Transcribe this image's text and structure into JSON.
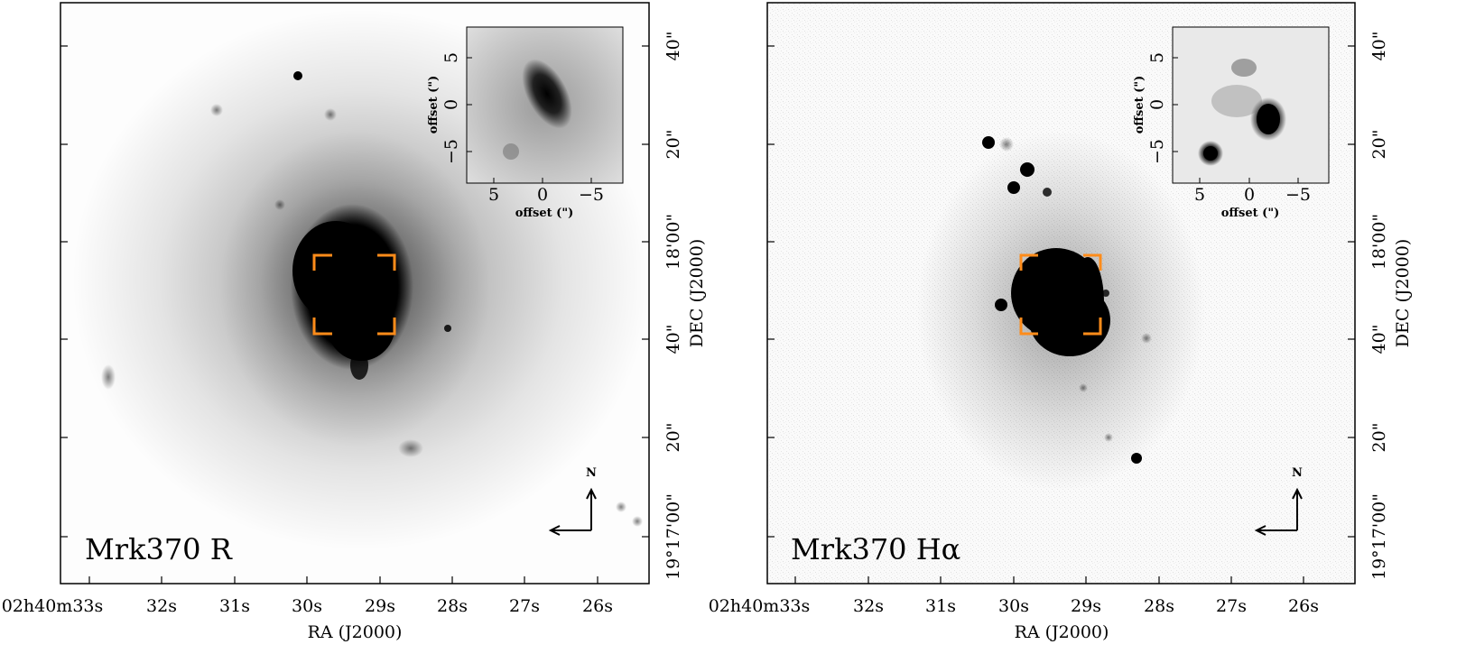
{
  "panels": [
    {
      "id": "left",
      "label": "Mrk370 R",
      "ra_ticks": [
        "02h40m33s",
        "32s",
        "31s",
        "30s",
        "29s",
        "28s",
        "27s",
        "26s"
      ],
      "dec_ticks": [
        "19°17'00\"",
        "20\"",
        "40\"",
        "18'00\"",
        "20\"",
        "40\""
      ],
      "x_axis_label": "RA (J2000)",
      "y_axis_label": "DEC (J2000)",
      "compass": "N",
      "inset": {
        "xlabel": "offset (\")",
        "ylabel": "offset (\")",
        "x_ticks": [
          "5",
          "0",
          "−5"
        ],
        "y_ticks": [
          "5",
          "0",
          "−5"
        ]
      }
    },
    {
      "id": "right",
      "label": "Mrk370 Hα",
      "ra_ticks": [
        "02h40m33s",
        "32s",
        "31s",
        "30s",
        "29s",
        "28s",
        "27s",
        "26s"
      ],
      "dec_ticks": [
        "19°17'00\"",
        "20\"",
        "40\"",
        "18'00\"",
        "20\"",
        "40\""
      ],
      "x_axis_label": "RA (J2000)",
      "y_axis_label": "DEC (J2000)",
      "compass": "N",
      "inset": {
        "xlabel": "offset (\")",
        "ylabel": "offset (\")",
        "x_ticks": [
          "5",
          "0",
          "−5"
        ],
        "y_ticks": [
          "5",
          "0",
          "−5"
        ]
      }
    }
  ],
  "colors": {
    "box": "#ff8c1a",
    "image_ink": "#000000",
    "background": "#ffffff"
  }
}
